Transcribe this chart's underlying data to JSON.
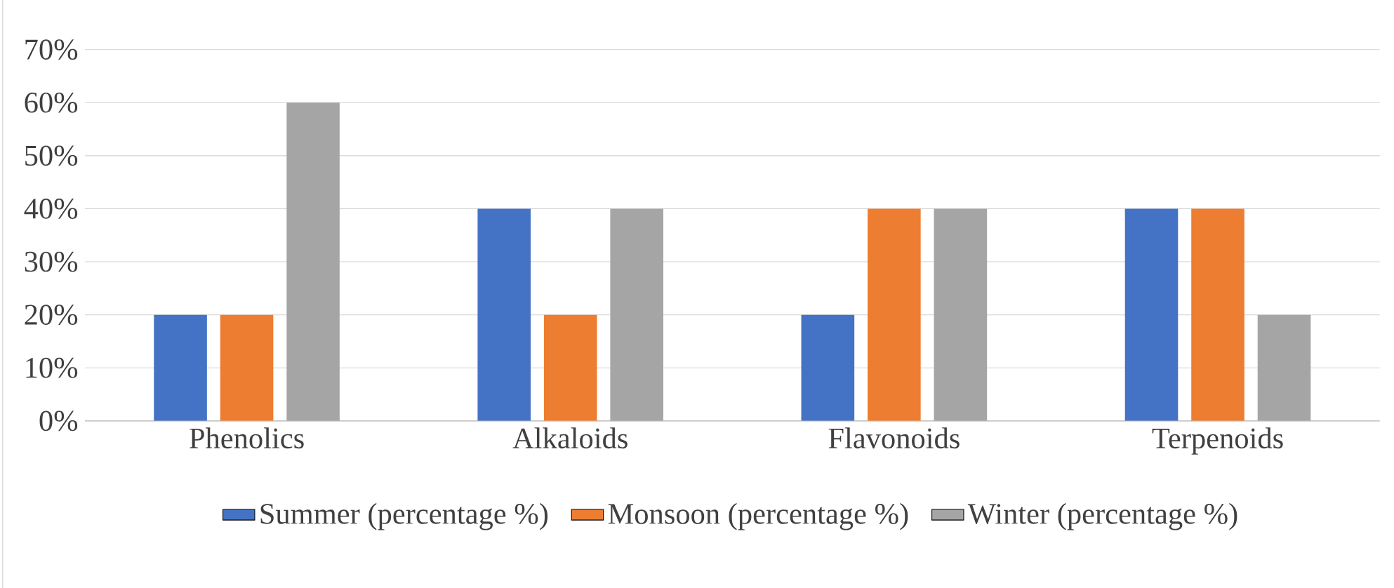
{
  "chart_data": {
    "type": "bar",
    "categories": [
      "Phenolics",
      "Alkaloids",
      "Flavonoids",
      "Terpenoids"
    ],
    "series": [
      {
        "name": "Summer (percentage %)",
        "color": "#4472c4",
        "values": [
          20,
          40,
          20,
          40
        ]
      },
      {
        "name": "Monsoon (percentage %)",
        "color": "#ed7d31",
        "values": [
          20,
          20,
          40,
          40
        ]
      },
      {
        "name": "Winter (percentage %)",
        "color": "#a5a5a5",
        "values": [
          60,
          40,
          40,
          20
        ]
      }
    ],
    "ylim": [
      0,
      70
    ],
    "yticks": [
      {
        "value": 0,
        "label": "0%"
      },
      {
        "value": 10,
        "label": "10%"
      },
      {
        "value": 20,
        "label": "20%"
      },
      {
        "value": 30,
        "label": "30%"
      },
      {
        "value": 40,
        "label": "40%"
      },
      {
        "value": 50,
        "label": "50%"
      },
      {
        "value": 60,
        "label": "60%"
      },
      {
        "value": 70,
        "label": "70%"
      }
    ],
    "grid": "y",
    "legend": "bottom"
  }
}
